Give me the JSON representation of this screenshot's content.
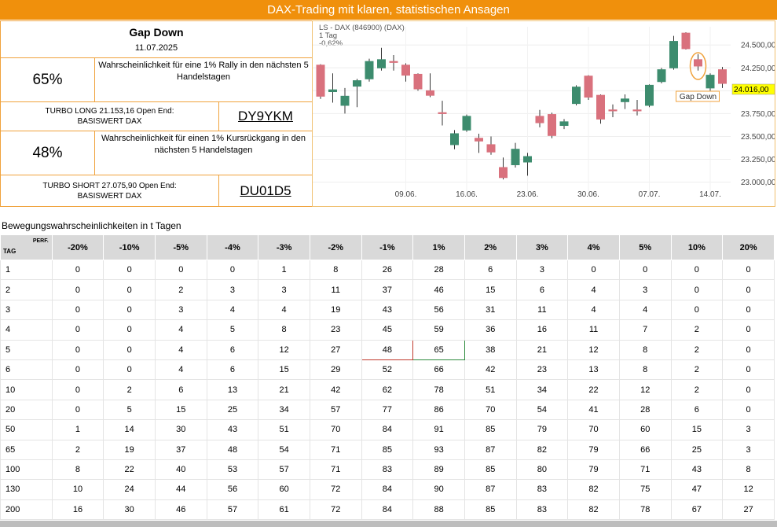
{
  "header": {
    "title": "DAX-Trading mit klaren, statistischen Ansagen"
  },
  "signal": {
    "title": "Gap Down",
    "date": "11.07.2025",
    "long": {
      "probability": "65%",
      "text": "Wahrscheinlichkeit für eine 1% Rally in den nächsten 5 Handelstagen",
      "product": "TURBO LONG 21.153,16 Open End:",
      "underlying": "BASISWERT DAX",
      "wkn": "DY9YKM"
    },
    "short": {
      "probability": "48%",
      "text": "Wahrscheinlichkeit für einen 1% Kursrückgang in den nächsten 5 Handelstagen",
      "product": "TURBO SHORT 27.075,90 Open End:",
      "underlying": "BASISWERT DAX",
      "wkn": "DU01D5"
    }
  },
  "chart_data": {
    "type": "candlestick",
    "title": "LS - DAX (846900) (DAX)",
    "subtitle": "1 Tag",
    "change": "-0,62%",
    "categories": [
      null,
      null,
      null,
      null,
      null,
      null,
      null,
      "09.06.",
      null,
      null,
      null,
      null,
      "16.06.",
      null,
      null,
      null,
      null,
      "23.06.",
      null,
      null,
      null,
      null,
      "30.06.",
      null,
      null,
      null,
      null,
      "07.07.",
      null,
      null,
      null,
      null,
      "14.07.",
      null
    ],
    "open": [
      24280,
      23990,
      23840,
      24050,
      24130,
      24250,
      24320,
      24280,
      24180,
      24000,
      23760,
      23410,
      23570,
      23480,
      23410,
      23160,
      23190,
      23220,
      23720,
      23740,
      23620,
      23860,
      24160,
      23950,
      23790,
      23880,
      23790,
      23840,
      24100,
      24250,
      24630,
      24340,
      24030,
      24230
    ],
    "high": [
      24290,
      24190,
      24030,
      24130,
      24350,
      24470,
      24390,
      24300,
      24190,
      24190,
      23890,
      23570,
      23740,
      23530,
      23500,
      23270,
      23430,
      23320,
      23790,
      23760,
      23690,
      24060,
      24170,
      23960,
      23850,
      23960,
      23900,
      24070,
      24250,
      24600,
      24640,
      24400,
      24190,
      24260
    ],
    "low": [
      23910,
      23870,
      23750,
      23820,
      24100,
      24220,
      24220,
      24100,
      24000,
      23930,
      23620,
      23360,
      23550,
      23320,
      23300,
      23030,
      23160,
      23070,
      23600,
      23480,
      23580,
      23840,
      23900,
      23640,
      23710,
      23800,
      23730,
      23820,
      24080,
      24230,
      24450,
      24220,
      24000,
      24030
    ],
    "close": [
      23940,
      24010,
      23940,
      24110,
      24320,
      24340,
      24310,
      24170,
      24020,
      23950,
      23750,
      23530,
      23720,
      23450,
      23330,
      23050,
      23360,
      23280,
      23650,
      23510,
      23660,
      24040,
      23930,
      23690,
      23780,
      23910,
      23780,
      24060,
      24230,
      24540,
      24460,
      24270,
      24170,
      24080
    ],
    "up_color": "#3d8c6e",
    "down_color": "#d9717d",
    "ylim": [
      22850,
      24700
    ],
    "yticks": [
      {
        "value": 23000,
        "label": "23.000,00"
      },
      {
        "value": 23250,
        "label": "23.250,00"
      },
      {
        "value": 23500,
        "label": "23.500,00"
      },
      {
        "value": 23750,
        "label": "23.750,00"
      },
      {
        "value": 24000,
        "label": "24.000,00"
      },
      {
        "value": 24250,
        "label": "24.250,00"
      },
      {
        "value": 24500,
        "label": "24.500,00"
      }
    ],
    "last_price": {
      "value": 24016,
      "label": "24.016,00"
    },
    "annotation": "Gap Down",
    "grid": true
  },
  "table": {
    "title": "Bewegungswahrscheinlichkeiten in t Tagen",
    "corner_row": "TAG",
    "corner_col": "PERF.",
    "columns": [
      "-20%",
      "-10%",
      "-5%",
      "-4%",
      "-3%",
      "-2%",
      "-1%",
      "1%",
      "2%",
      "3%",
      "4%",
      "5%",
      "10%",
      "20%"
    ],
    "rows": [
      [
        1,
        0,
        0,
        0,
        0,
        1,
        8,
        26,
        28,
        6,
        3,
        0,
        0,
        0,
        0
      ],
      [
        2,
        0,
        0,
        2,
        3,
        3,
        11,
        37,
        46,
        15,
        6,
        4,
        3,
        0,
        0
      ],
      [
        3,
        0,
        0,
        3,
        4,
        4,
        19,
        43,
        56,
        31,
        11,
        4,
        4,
        0,
        0
      ],
      [
        4,
        0,
        0,
        4,
        5,
        8,
        23,
        45,
        59,
        36,
        16,
        11,
        7,
        2,
        0
      ],
      [
        5,
        0,
        0,
        4,
        6,
        12,
        27,
        48,
        65,
        38,
        21,
        12,
        8,
        2,
        0
      ],
      [
        6,
        0,
        0,
        4,
        6,
        15,
        29,
        52,
        66,
        42,
        23,
        13,
        8,
        2,
        0
      ],
      [
        10,
        0,
        2,
        6,
        13,
        21,
        42,
        62,
        78,
        51,
        34,
        22,
        12,
        2,
        0
      ],
      [
        20,
        0,
        5,
        15,
        25,
        34,
        57,
        77,
        86,
        70,
        54,
        41,
        28,
        6,
        0
      ],
      [
        50,
        1,
        14,
        30,
        43,
        51,
        70,
        84,
        91,
        85,
        79,
        70,
        60,
        15,
        3
      ],
      [
        65,
        2,
        19,
        37,
        48,
        54,
        71,
        85,
        93,
        87,
        82,
        79,
        66,
        25,
        3
      ],
      [
        100,
        8,
        22,
        40,
        53,
        57,
        71,
        83,
        89,
        85,
        80,
        79,
        71,
        43,
        8
      ],
      [
        130,
        10,
        24,
        44,
        56,
        60,
        72,
        84,
        90,
        87,
        83,
        82,
        75,
        47,
        12
      ],
      [
        200,
        16,
        30,
        46,
        57,
        61,
        72,
        84,
        88,
        85,
        83,
        82,
        78,
        67,
        27
      ]
    ]
  }
}
